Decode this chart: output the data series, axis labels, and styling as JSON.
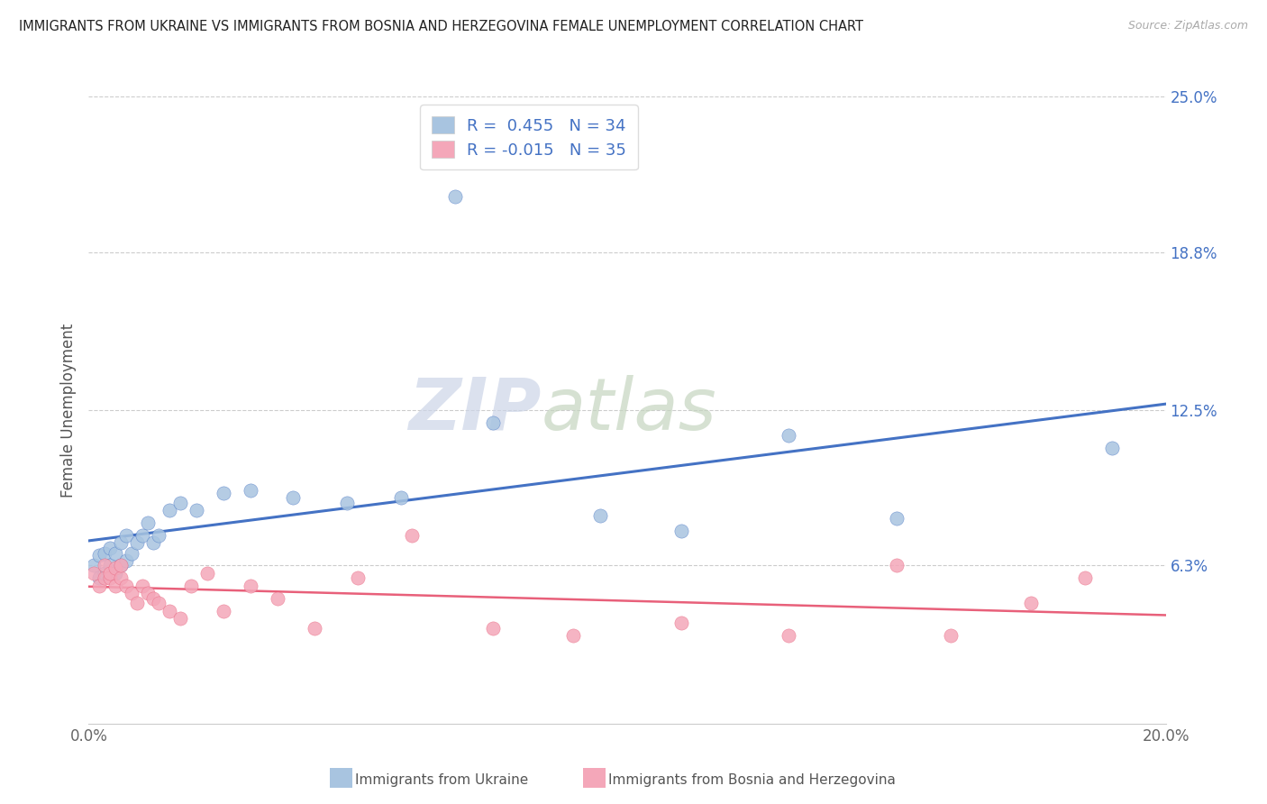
{
  "title": "IMMIGRANTS FROM UKRAINE VS IMMIGRANTS FROM BOSNIA AND HERZEGOVINA FEMALE UNEMPLOYMENT CORRELATION CHART",
  "source": "Source: ZipAtlas.com",
  "ylabel": "Female Unemployment",
  "xlim": [
    0.0,
    0.2
  ],
  "ylim": [
    0.0,
    0.25
  ],
  "yticks": [
    0.0,
    0.063,
    0.125,
    0.188,
    0.25
  ],
  "ytick_labels": [
    "",
    "6.3%",
    "12.5%",
    "18.8%",
    "25.0%"
  ],
  "xticks": [
    0.0,
    0.05,
    0.1,
    0.15,
    0.2
  ],
  "xtick_labels": [
    "0.0%",
    "",
    "",
    "",
    "20.0%"
  ],
  "ukraine_R": 0.455,
  "ukraine_N": 34,
  "bosnia_R": -0.015,
  "bosnia_N": 35,
  "ukraine_color": "#a8c4e0",
  "ukraine_line_color": "#4472c4",
  "bosnia_color": "#f4a7b9",
  "bosnia_line_color": "#e8607a",
  "legend_text_color": "#4472c4",
  "watermark_zip": "ZIP",
  "watermark_atlas": "atlas",
  "watermark_color_zip": "#cdd8ea",
  "watermark_color_atlas": "#c8d5c8",
  "legend_label_ukraine": "Immigrants from Ukraine",
  "legend_label_bosnia": "Immigrants from Bosnia and Herzegovina",
  "ukraine_x": [
    0.001,
    0.002,
    0.002,
    0.003,
    0.003,
    0.004,
    0.004,
    0.005,
    0.005,
    0.006,
    0.006,
    0.007,
    0.007,
    0.008,
    0.009,
    0.01,
    0.011,
    0.012,
    0.013,
    0.015,
    0.017,
    0.02,
    0.025,
    0.03,
    0.038,
    0.048,
    0.058,
    0.068,
    0.075,
    0.095,
    0.11,
    0.13,
    0.15,
    0.19
  ],
  "ukraine_y": [
    0.063,
    0.058,
    0.067,
    0.06,
    0.068,
    0.063,
    0.07,
    0.06,
    0.068,
    0.063,
    0.072,
    0.065,
    0.075,
    0.068,
    0.072,
    0.075,
    0.08,
    0.072,
    0.075,
    0.085,
    0.088,
    0.085,
    0.092,
    0.093,
    0.09,
    0.088,
    0.09,
    0.21,
    0.12,
    0.083,
    0.077,
    0.115,
    0.082,
    0.11
  ],
  "bosnia_x": [
    0.001,
    0.002,
    0.003,
    0.003,
    0.004,
    0.004,
    0.005,
    0.005,
    0.006,
    0.006,
    0.007,
    0.008,
    0.009,
    0.01,
    0.011,
    0.012,
    0.013,
    0.015,
    0.017,
    0.019,
    0.022,
    0.025,
    0.03,
    0.035,
    0.042,
    0.05,
    0.06,
    0.075,
    0.09,
    0.11,
    0.13,
    0.15,
    0.16,
    0.175,
    0.185
  ],
  "bosnia_y": [
    0.06,
    0.055,
    0.058,
    0.063,
    0.058,
    0.06,
    0.055,
    0.062,
    0.058,
    0.063,
    0.055,
    0.052,
    0.048,
    0.055,
    0.052,
    0.05,
    0.048,
    0.045,
    0.042,
    0.055,
    0.06,
    0.045,
    0.055,
    0.05,
    0.038,
    0.058,
    0.075,
    0.038,
    0.035,
    0.04,
    0.035,
    0.063,
    0.035,
    0.048,
    0.058
  ]
}
